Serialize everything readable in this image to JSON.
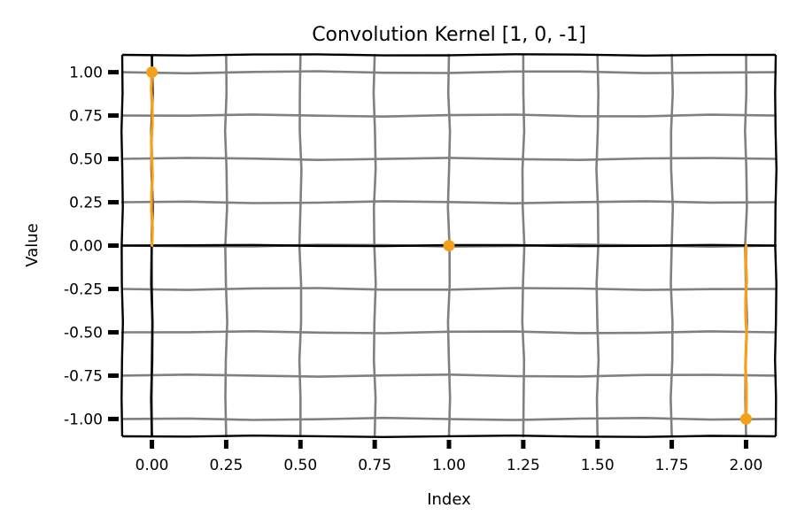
{
  "chart_data": {
    "type": "line",
    "title": "Convolution Kernel [1, 0, -1]",
    "xlabel": "Index",
    "ylabel": "Value",
    "xlim": [
      -0.1,
      2.1
    ],
    "ylim": [
      -1.1,
      1.1
    ],
    "x_ticks": [
      0.0,
      0.25,
      0.5,
      0.75,
      1.0,
      1.25,
      1.5,
      1.75,
      2.0
    ],
    "x_tick_labels": [
      "0.00",
      "0.25",
      "0.50",
      "0.75",
      "1.00",
      "1.25",
      "1.50",
      "1.75",
      "2.00"
    ],
    "y_ticks": [
      1.0,
      0.75,
      0.5,
      0.25,
      0.0,
      -0.25,
      -0.5,
      -0.75,
      -1.0
    ],
    "y_tick_labels": [
      "1.00",
      "0.75",
      "0.50",
      "0.25",
      "0.00",
      "-0.25",
      "-0.50",
      "-0.75",
      "-1.00"
    ],
    "grid": true,
    "style": "stem",
    "series": [
      {
        "x": [
          0,
          1,
          2
        ],
        "values": [
          1,
          0,
          -1
        ],
        "color": "#f5a01a"
      }
    ]
  },
  "colors": {
    "grid": "#808080",
    "axis": "#000000",
    "series": "#f5a01a"
  }
}
